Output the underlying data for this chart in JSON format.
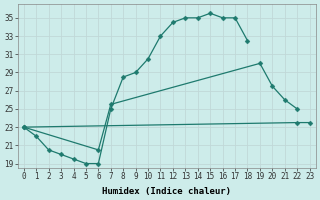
{
  "xlabel": "Humidex (Indice chaleur)",
  "background_color": "#cdecea",
  "grid_color": "#c0d8d8",
  "line_color": "#1e7a6e",
  "xlim": [
    -0.5,
    23.5
  ],
  "ylim": [
    18.5,
    36.5
  ],
  "yticks": [
    19,
    21,
    23,
    25,
    27,
    29,
    31,
    33,
    35
  ],
  "xticks": [
    0,
    1,
    2,
    3,
    4,
    5,
    6,
    7,
    8,
    9,
    10,
    11,
    12,
    13,
    14,
    15,
    16,
    17,
    18,
    19,
    20,
    21,
    22,
    23
  ],
  "curve1_x": [
    0,
    1,
    2,
    3,
    4,
    5,
    6,
    7,
    8,
    9,
    10,
    11,
    12,
    13,
    14,
    15,
    16,
    17,
    18
  ],
  "curve1_y": [
    23,
    22,
    20.5,
    20,
    19.5,
    19,
    19,
    25,
    28.5,
    29,
    30.5,
    33,
    34.5,
    35,
    35,
    35.5,
    35,
    35,
    32.5
  ],
  "curve2_x": [
    0,
    6,
    7,
    19,
    20,
    21,
    22
  ],
  "curve2_y": [
    23,
    20.5,
    25.5,
    30,
    27.5,
    26,
    25
  ],
  "curve3_x": [
    0,
    22,
    23
  ],
  "curve3_y": [
    23,
    23.5,
    23.5
  ],
  "marker_size": 2.5,
  "linewidth": 0.9,
  "xlabel_fontsize": 6.5,
  "tick_fontsize": 5.5
}
